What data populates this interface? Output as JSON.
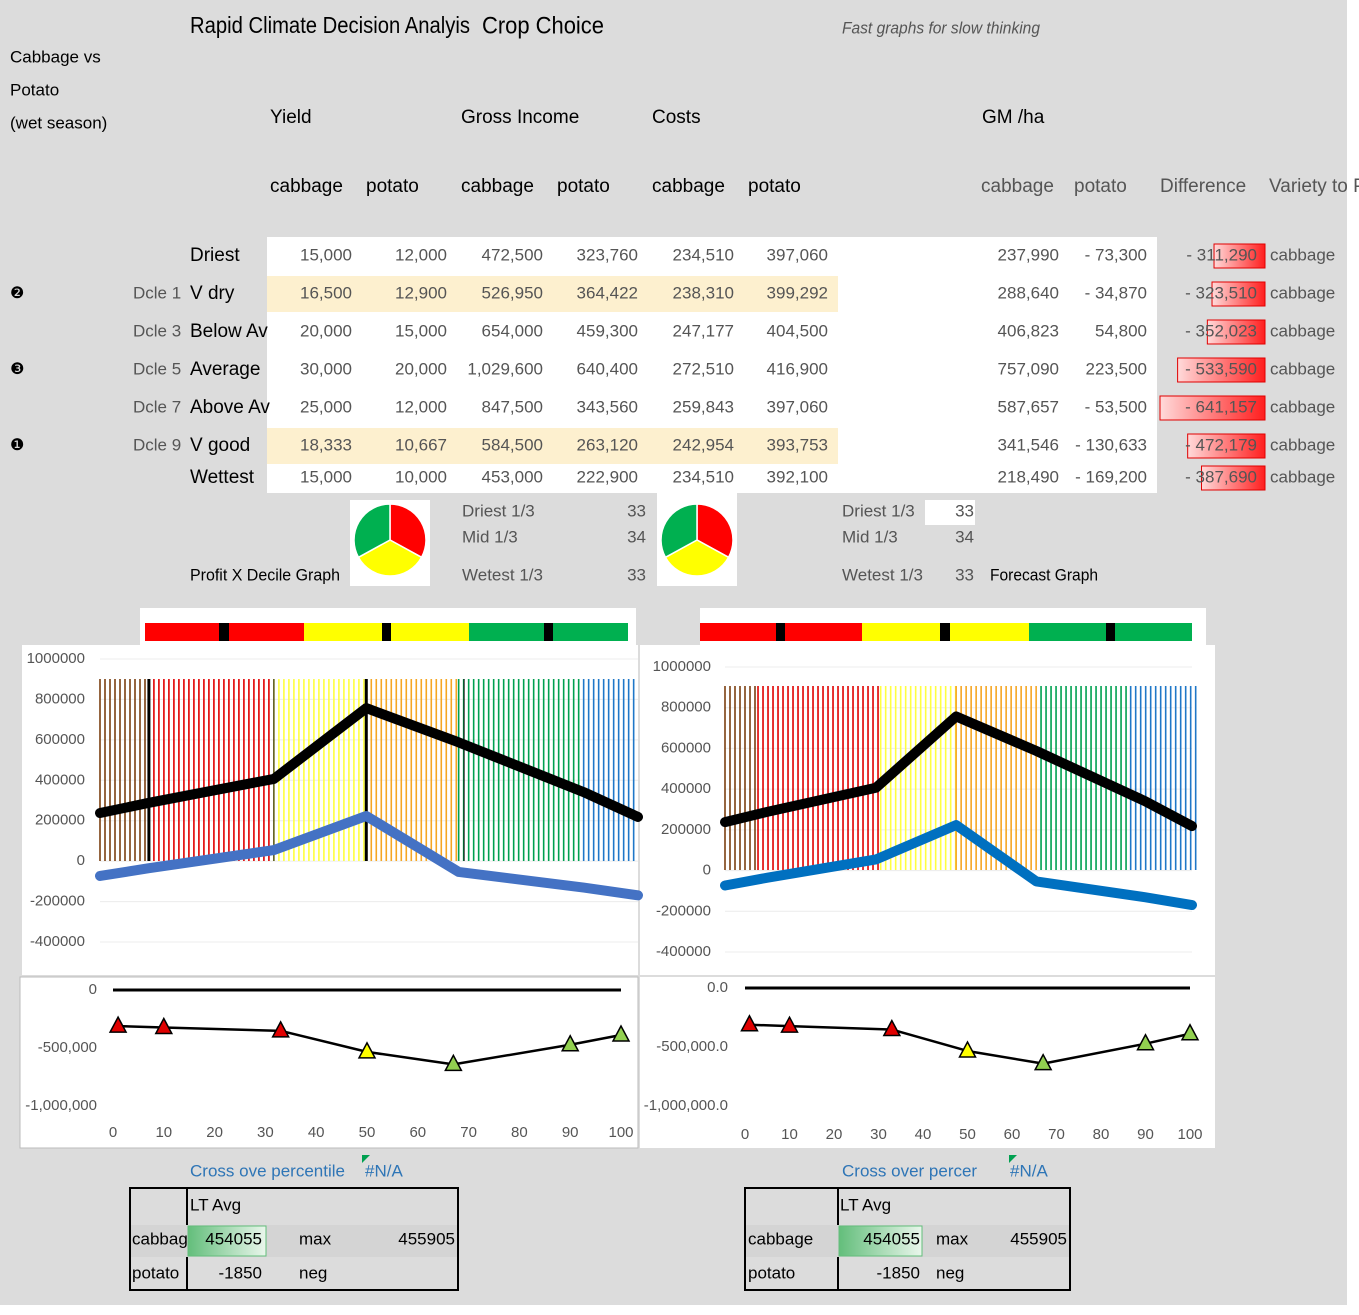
{
  "header": {
    "title": "Rapid Climate Decision Analyis",
    "title_2": "Crop Choice",
    "subtitle": "Fast graphs for slow thinking"
  },
  "side_label": [
    "Cabbage vs",
    "Potato",
    "(wet season)"
  ],
  "table": {
    "groups": [
      "Yield",
      "Gross Income",
      "Costs",
      "GM /ha"
    ],
    "columns": [
      "cabbage",
      "potato",
      "cabbage",
      "potato",
      "cabbage",
      "potato",
      "cabbage",
      "potato",
      "Difference",
      "Variety to P"
    ],
    "rows": [
      {
        "label": "Driest",
        "cells": [
          "15,000",
          "12,000",
          "472,500",
          "323,760",
          "234,510",
          "397,060"
        ],
        "gm": [
          "237,990",
          "- 73,300"
        ],
        "difference": {
          "value": -311290,
          "label": "- 311,290"
        },
        "variety": "cabbage"
      },
      {
        "marker": "❷",
        "decile": "Dcle 1",
        "label": "V dry",
        "highlight": true,
        "cells": [
          "16,500",
          "12,900",
          "526,950",
          "364,422",
          "238,310",
          "399,292"
        ],
        "gm": [
          "288,640",
          "- 34,870"
        ],
        "difference": {
          "value": -323510,
          "label": "- 323,510"
        },
        "variety": "cabbage"
      },
      {
        "decile": "Dcle 3",
        "label": "Below Av",
        "cells": [
          "20,000",
          "15,000",
          "654,000",
          "459,300",
          "247,177",
          "404,500"
        ],
        "gm": [
          "406,823",
          "54,800"
        ],
        "difference": {
          "value": -352023,
          "label": "- 352,023"
        },
        "variety": "cabbage"
      },
      {
        "marker": "❸",
        "decile": "Dcle 5",
        "label": "Average",
        "cells": [
          "30,000",
          "20,000",
          "1,029,600",
          "640,400",
          "272,510",
          "416,900"
        ],
        "gm": [
          "757,090",
          "223,500"
        ],
        "difference": {
          "value": -533590,
          "label": "- 533,590"
        },
        "variety": "cabbage"
      },
      {
        "decile": "Dcle 7",
        "label": "Above Av",
        "cells": [
          "25,000",
          "12,000",
          "847,500",
          "343,560",
          "259,843",
          "397,060"
        ],
        "gm": [
          "587,657",
          "- 53,500"
        ],
        "difference": {
          "value": -641157,
          "label": "- 641,157"
        },
        "variety": "cabbage"
      },
      {
        "marker": "❶",
        "decile": "Dcle 9",
        "label": "V good",
        "highlight": true,
        "cells": [
          "18,333",
          "10,667",
          "584,500",
          "263,120",
          "242,954",
          "393,753"
        ],
        "gm": [
          "341,546",
          "- 130,633"
        ],
        "difference": {
          "value": -472179,
          "label": "- 472,179"
        },
        "variety": "cabbage"
      },
      {
        "label": "Wettest",
        "cells": [
          "15,000",
          "10,000",
          "453,000",
          "222,900",
          "234,510",
          "392,100"
        ],
        "gm": [
          "218,490",
          "- 169,200"
        ],
        "difference": {
          "value": -387690,
          "label": "- 387,690"
        },
        "variety": "cabbage"
      }
    ]
  },
  "labels": {
    "profit_graph": "Profit X Decile Graph",
    "forecast_graph": "Forecast Graph"
  },
  "chart_data": [
    {
      "type": "pie",
      "categories": [
        "Driest 1/3",
        "Mid 1/3",
        "Wetest 1/3"
      ],
      "values": [
        33,
        34,
        33
      ],
      "colors": [
        "#ff0000",
        "#ffff00",
        "#00b050"
      ]
    },
    {
      "type": "pie",
      "categories": [
        "Driest 1/3",
        "Mid 1/3",
        "Wetest 1/3"
      ],
      "values": [
        33,
        34,
        33
      ],
      "colors": [
        "#ff0000",
        "#ffff00",
        "#00b050"
      ]
    },
    {
      "type": "line",
      "x": [
        1,
        10,
        33,
        50,
        67,
        90,
        100
      ],
      "xlim": [
        1,
        100
      ],
      "ylim": [
        -400000,
        1000000
      ],
      "yticks": [
        1000000,
        800000,
        600000,
        400000,
        200000,
        0,
        -200000,
        -400000
      ],
      "grid": true,
      "series": [
        {
          "color": "#000000",
          "values": [
            237990,
            288640,
            406823,
            757090,
            587657,
            341546,
            218490
          ]
        },
        {
          "color": "#4472c4",
          "values": [
            -73300,
            -34870,
            54800,
            223500,
            -53500,
            -130633,
            -169200
          ]
        }
      ]
    },
    {
      "type": "line",
      "x": [
        1,
        10,
        33,
        50,
        67,
        90,
        100
      ],
      "xlim": [
        0,
        100
      ],
      "ylim": [
        -1000000,
        0
      ],
      "yticks": [
        0,
        {
          "value": -500000,
          "label": "-500,000"
        },
        {
          "value": -1000000,
          "label": "-1,000,000"
        }
      ],
      "xticks": [
        0,
        10,
        20,
        30,
        40,
        50,
        60,
        70,
        80,
        90,
        100
      ],
      "grid": false,
      "zero_line": true,
      "marker": "triangle",
      "series": [
        {
          "color": "#000000",
          "values": [
            -311290,
            -323510,
            -352023,
            -533590,
            -641157,
            -472179,
            -387690
          ],
          "marker_colors": [
            "#e00000",
            "#e00000",
            "#e00000",
            "#ffff00",
            "#92d050",
            "#92d050",
            "#92d050"
          ]
        }
      ]
    },
    {
      "type": "line",
      "x": [
        1,
        10,
        33,
        50,
        67,
        90,
        100
      ],
      "xlim": [
        1,
        100
      ],
      "ylim": [
        -400000,
        1000000
      ],
      "yticks": [
        1000000,
        800000,
        600000,
        400000,
        200000,
        0,
        -200000,
        -400000
      ],
      "grid": true,
      "series": [
        {
          "color": "#000000",
          "values": [
            237990,
            288640,
            406823,
            757090,
            587657,
            341546,
            218490
          ]
        },
        {
          "color": "#0070c0",
          "values": [
            -73300,
            -34870,
            54800,
            223500,
            -53500,
            -130633,
            -169200
          ]
        }
      ]
    },
    {
      "type": "line",
      "x": [
        1,
        10,
        33,
        50,
        67,
        90,
        100
      ],
      "xlim": [
        0,
        100
      ],
      "ylim": [
        -1000000,
        0
      ],
      "yticks": [
        {
          "value": 0,
          "label": "0.0"
        },
        {
          "value": -500000,
          "label": "-500,000.0"
        },
        {
          "value": -1000000,
          "label": "-1,000,000.0"
        }
      ],
      "xticks": [
        0,
        10,
        20,
        30,
        40,
        50,
        60,
        70,
        80,
        90,
        100
      ],
      "grid": false,
      "zero_line": true,
      "marker": "triangle",
      "series": [
        {
          "color": "#000000",
          "values": [
            -311290,
            -323510,
            -352023,
            -533590,
            -641157,
            -472179,
            -387690
          ],
          "marker_colors": [
            "#e00000",
            "#e00000",
            "#e00000",
            "#ffff00",
            "#92d050",
            "#92d050",
            "#92d050"
          ]
        }
      ]
    }
  ],
  "summary_tables": [
    {
      "cross_label": "Cross ove percentile",
      "cross_value": "#N/A",
      "col_header": "LT Avg",
      "rows": [
        [
          "cabbag",
          454055,
          "max",
          455905
        ],
        [
          "potato",
          -1850,
          "neg"
        ]
      ]
    },
    {
      "cross_label": "Cross over percer",
      "cross_value": "#N/A",
      "col_header": "LT Avg",
      "rows": [
        [
          "cabbage",
          454055,
          "max",
          455905
        ],
        [
          "potato",
          -1850,
          "neg"
        ]
      ]
    }
  ]
}
